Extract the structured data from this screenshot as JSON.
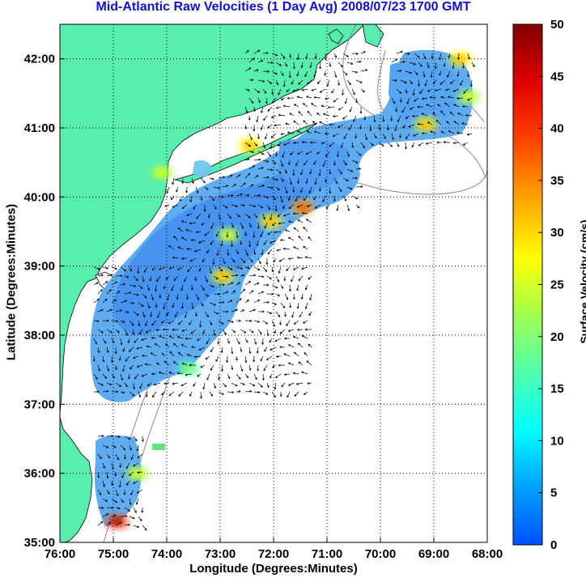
{
  "chart_data": {
    "type": "heatmap",
    "title": "Mid-Atlantic Raw Velocities (1 Day Avg) 2008/07/23 1700 GMT",
    "xlabel": "Longitude (Degrees:Minutes)",
    "ylabel": "Latitude (Degrees:Minutes)",
    "colorbar_label": "Surface Velocity (cm/s)",
    "xlim": [
      -76,
      -68
    ],
    "ylim": [
      35,
      42.5
    ],
    "x_ticks": [
      -76,
      -75,
      -74,
      -73,
      -72,
      -71,
      -70,
      -69,
      -68
    ],
    "x_tick_labels": [
      "76:00",
      "75:00",
      "74:00",
      "73:00",
      "72:00",
      "71:00",
      "70:00",
      "69:00",
      "68:00"
    ],
    "y_ticks": [
      35,
      36,
      37,
      38,
      39,
      40,
      41,
      42
    ],
    "y_tick_labels": [
      "35:00",
      "36:00",
      "37:00",
      "38:00",
      "39:00",
      "40:00",
      "41:00",
      "42:00"
    ],
    "colorbar_range": [
      0,
      50
    ],
    "colorbar_ticks": [
      0,
      5,
      10,
      15,
      20,
      25,
      30,
      35,
      40,
      45,
      50
    ],
    "grid": true,
    "land_color": "#58eeb0",
    "colormap": [
      "#0050ff",
      "#00a0ff",
      "#00ffff",
      "#50ffb0",
      "#a0ff50",
      "#ffff00",
      "#ffa000",
      "#ff4000",
      "#e00000",
      "#800000"
    ],
    "highlights": [
      {
        "lon": -74.93,
        "lat": 35.3,
        "speed": 48
      },
      {
        "lon": -72.45,
        "lat": 40.75,
        "speed": 35
      },
      {
        "lon": -71.45,
        "lat": 39.85,
        "speed": 40
      },
      {
        "lon": -72.05,
        "lat": 39.65,
        "speed": 33
      },
      {
        "lon": -72.85,
        "lat": 39.45,
        "speed": 30
      },
      {
        "lon": -72.95,
        "lat": 38.85,
        "speed": 33
      },
      {
        "lon": -69.15,
        "lat": 41.05,
        "speed": 35
      },
      {
        "lon": -68.5,
        "lat": 42.0,
        "speed": 35
      },
      {
        "lon": -68.35,
        "lat": 41.45,
        "speed": 30
      },
      {
        "lon": -74.55,
        "lat": 36.0,
        "speed": 30
      },
      {
        "lon": -73.6,
        "lat": 37.52,
        "speed": 22
      },
      {
        "lon": -74.1,
        "lat": 40.35,
        "speed": 25
      }
    ]
  }
}
